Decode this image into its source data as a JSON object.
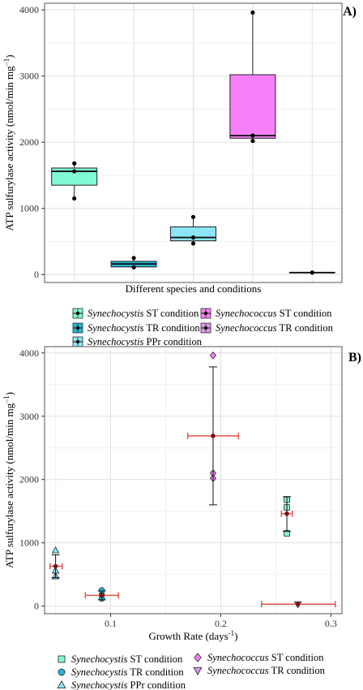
{
  "colors": {
    "st": "#7ff9d6",
    "tr": "#20b8d8",
    "ppr": "#8ce6f6",
    "syn_st": "#f77ff7",
    "syn_tr": "#d99ae8",
    "error_x": "#e8413a",
    "point": "#000000",
    "grid": "#e0e0e0",
    "panel_border": "#555555"
  },
  "chart_data": [
    {
      "type": "box",
      "panel_label": "A)",
      "xlabel": "Different species and conditions",
      "ylabel": "ATP sulfurylase activity (nmol/min mg",
      "ylabel_sup": "−1",
      "ylabel_close": ")",
      "ylim": [
        -120,
        4100
      ],
      "yticks": [
        0,
        1000,
        2000,
        3000,
        4000
      ],
      "grid": true,
      "boxes": [
        {
          "key": "st",
          "min": 1150,
          "q1": 1350,
          "median": 1560,
          "q3": 1610,
          "max": 1680,
          "points": [
            1150,
            1560,
            1680
          ]
        },
        {
          "key": "tr",
          "min": 110,
          "q1": 115,
          "median": 160,
          "q3": 200,
          "max": 250,
          "points": [
            110,
            250
          ]
        },
        {
          "key": "ppr",
          "min": 470,
          "q1": 510,
          "median": 560,
          "q3": 720,
          "max": 870,
          "points": [
            470,
            560,
            870
          ]
        },
        {
          "key": "syn_st",
          "min": 2020,
          "q1": 2060,
          "median": 2100,
          "q3": 3020,
          "max": 3960,
          "points": [
            2020,
            2100,
            3960
          ]
        },
        {
          "key": "syn_tr",
          "min": 30,
          "q1": 30,
          "median": 30,
          "q3": 30,
          "max": 30,
          "points": [
            30
          ]
        }
      ],
      "legend": [
        {
          "key": "st",
          "species": "Synechocystis",
          "condition": " ST condition"
        },
        {
          "key": "tr",
          "species": "Synechocystis",
          "condition": " TR condition"
        },
        {
          "key": "ppr",
          "species": "Synechocystis",
          "condition": " PPr condition"
        },
        {
          "key": "syn_st",
          "species": "Synechococcus",
          "condition": " ST condition"
        },
        {
          "key": "syn_tr",
          "species": "Synechococcus",
          "condition": " TR condition"
        }
      ]
    },
    {
      "type": "scatter",
      "panel_label": "B)",
      "xlabel": "Growth Rate (days",
      "xlabel_sup": "-1",
      "xlabel_close": ")",
      "ylabel": "ATP sulfurylase activity (nmol/min mg",
      "ylabel_sup": "−1",
      "ylabel_close": ")",
      "xlim": [
        0.04,
        0.31
      ],
      "ylim": [
        -120,
        4100
      ],
      "xticks": [
        0.1,
        0.2,
        0.3
      ],
      "xtick_labels": [
        "0.1",
        "0.2",
        "0.3"
      ],
      "yticks": [
        0,
        1000,
        2000,
        3000,
        4000
      ],
      "grid": true,
      "series": [
        {
          "key": "st",
          "shape": "square",
          "x": 0.26,
          "points": [
            1150,
            1560,
            1680
          ],
          "mean": 1460,
          "y_err": [
            1180,
            1730
          ],
          "x_err": [
            0.255,
            0.265
          ]
        },
        {
          "key": "tr",
          "shape": "circle",
          "x": 0.092,
          "points": [
            120,
            180,
            250
          ],
          "mean": 170,
          "y_err": [
            100,
            240
          ],
          "x_err": [
            0.077,
            0.107
          ]
        },
        {
          "key": "ppr",
          "shape": "triangle-up",
          "x": 0.05,
          "points": [
            470,
            560,
            880
          ],
          "mean": 630,
          "y_err": [
            450,
            810
          ],
          "x_err": [
            0.045,
            0.056
          ]
        },
        {
          "key": "syn_st",
          "shape": "diamond",
          "x": 0.193,
          "points": [
            2020,
            2100,
            3960
          ],
          "mean": 2690,
          "y_err": [
            1600,
            3780
          ],
          "x_err": [
            0.17,
            0.216
          ]
        },
        {
          "key": "syn_tr",
          "shape": "triangle-down",
          "x": 0.27,
          "points": [
            30
          ],
          "mean": 30,
          "y_err": [
            30,
            30
          ],
          "x_err": [
            0.237,
            0.304
          ]
        }
      ],
      "legend": [
        {
          "key": "st",
          "shape": "square",
          "species": "Synechocystis",
          "condition": " ST condition"
        },
        {
          "key": "tr",
          "shape": "circle",
          "species": "Synechocystis",
          "condition": " TR condition"
        },
        {
          "key": "ppr",
          "shape": "triangle-up",
          "species": "Synechocystis",
          "condition": " PPr condition"
        },
        {
          "key": "syn_st",
          "shape": "diamond",
          "species": "Synechococcus",
          "condition": " ST condition"
        },
        {
          "key": "syn_tr",
          "shape": "triangle-down",
          "species": "Synechococcus",
          "condition": " TR condition"
        }
      ]
    }
  ]
}
